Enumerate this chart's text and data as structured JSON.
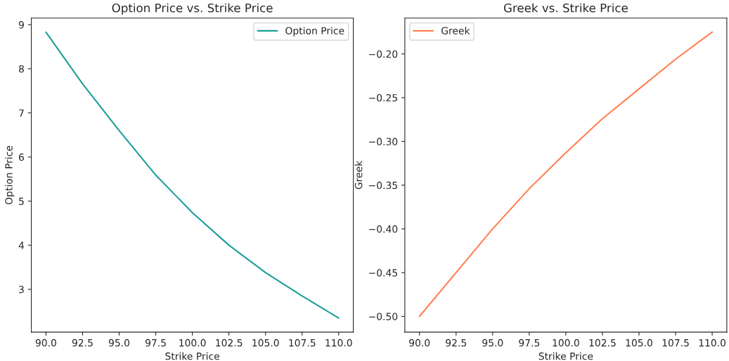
{
  "chart_data": [
    {
      "type": "line",
      "title": "Option Price vs. Strike Price",
      "xlabel": "Strike Price",
      "ylabel": "Option Price",
      "x": [
        90,
        92.5,
        95,
        97.5,
        100,
        102.5,
        105,
        107.5,
        110
      ],
      "series": [
        {
          "name": "Option Price",
          "color": "#1a9e9a",
          "values": [
            8.83,
            7.66,
            6.6,
            5.59,
            4.74,
            4.0,
            3.38,
            2.85,
            2.35
          ]
        }
      ],
      "xlim": [
        89,
        111
      ],
      "xticks": [
        {
          "value": 90,
          "label": "90.0"
        },
        {
          "value": 92.5,
          "label": "92.5"
        },
        {
          "value": 95,
          "label": "95.0"
        },
        {
          "value": 97.5,
          "label": "97.5"
        },
        {
          "value": 100,
          "label": "100.0"
        },
        {
          "value": 102.5,
          "label": "102.5"
        },
        {
          "value": 105,
          "label": "105.0"
        },
        {
          "value": 107.5,
          "label": "107.5"
        },
        {
          "value": 110,
          "label": "110.0"
        }
      ],
      "ylim": [
        2.03,
        9.15
      ],
      "yticks": [
        3,
        4,
        5,
        6,
        7,
        8,
        9
      ],
      "legend": "top right",
      "grid": false
    },
    {
      "type": "line",
      "title": "Greek vs. Strike Price",
      "xlabel": "Strike Price",
      "ylabel": "Greek",
      "x": [
        90,
        92.5,
        95,
        97.5,
        100,
        102.5,
        105,
        107.5,
        110
      ],
      "series": [
        {
          "name": "Greek",
          "color": "#ff7f50",
          "values": [
            -0.5,
            -0.45,
            -0.4,
            -0.354,
            -0.313,
            -0.274,
            -0.24,
            -0.206,
            -0.175
          ]
        }
      ],
      "xlim": [
        89,
        111
      ],
      "xticks": [
        {
          "value": 90,
          "label": "90.0"
        },
        {
          "value": 92.5,
          "label": "92.5"
        },
        {
          "value": 95,
          "label": "95.0"
        },
        {
          "value": 97.5,
          "label": "97.5"
        },
        {
          "value": 100,
          "label": "100.0"
        },
        {
          "value": 102.5,
          "label": "102.5"
        },
        {
          "value": 105,
          "label": "105.0"
        },
        {
          "value": 107.5,
          "label": "107.5"
        },
        {
          "value": 110,
          "label": "110.0"
        }
      ],
      "ylim": [
        -0.518,
        -0.159
      ],
      "yticks": [
        {
          "value": -0.5,
          "label": "−0.50"
        },
        {
          "value": -0.45,
          "label": "−0.45"
        },
        {
          "value": -0.4,
          "label": "−0.40"
        },
        {
          "value": -0.35,
          "label": "−0.35"
        },
        {
          "value": -0.3,
          "label": "−0.30"
        },
        {
          "value": -0.25,
          "label": "−0.25"
        },
        {
          "value": -0.2,
          "label": "−0.20"
        }
      ],
      "legend": "top left",
      "grid": false
    }
  ]
}
